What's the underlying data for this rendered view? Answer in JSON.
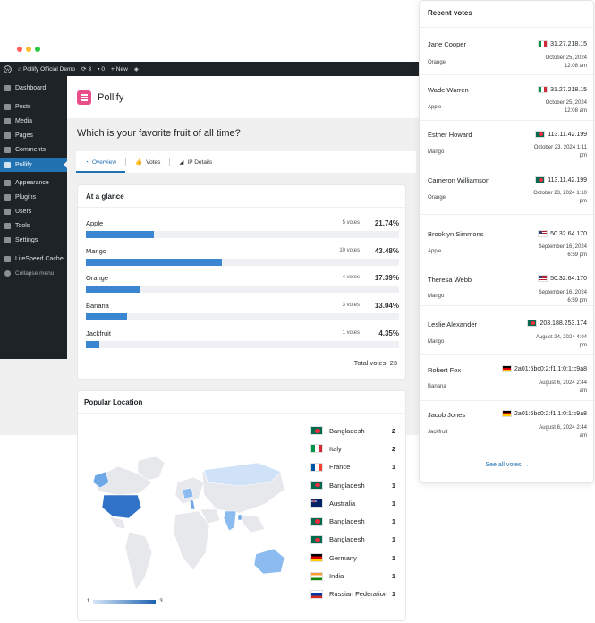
{
  "window": {
    "dot_colors": [
      "#ff5f57",
      "#febc2e",
      "#28c840"
    ]
  },
  "admin_bar": {
    "site_name": "Pollify Official Demo",
    "updates": "3",
    "comments": "0",
    "new_label": "New"
  },
  "wp_menu": {
    "items": [
      {
        "label": "Dashboard",
        "icon": "dashboard-icon"
      },
      {
        "label": "Posts",
        "icon": "pin-icon"
      },
      {
        "label": "Media",
        "icon": "media-icon"
      },
      {
        "label": "Pages",
        "icon": "pages-icon"
      },
      {
        "label": "Comments",
        "icon": "comment-icon"
      },
      {
        "label": "Pollify",
        "icon": "pollify-icon",
        "active": true
      },
      {
        "label": "Appearance",
        "icon": "brush-icon"
      },
      {
        "label": "Plugins",
        "icon": "plugin-icon"
      },
      {
        "label": "Users",
        "icon": "users-icon"
      },
      {
        "label": "Tools",
        "icon": "wrench-icon"
      },
      {
        "label": "Settings",
        "icon": "settings-icon"
      },
      {
        "label": "LiteSpeed Cache",
        "icon": "litespeed-icon"
      },
      {
        "label": "Collapse menu",
        "icon": "collapse-icon"
      }
    ]
  },
  "plugin": {
    "name": "Pollify",
    "brand_color": "#e84e8a"
  },
  "poll": {
    "question": "Which is your favorite fruit of all time?"
  },
  "tabs": [
    {
      "label": "Overview"
    },
    {
      "label": "Votes"
    },
    {
      "label": "IP Details"
    }
  ],
  "glance": {
    "title": "At a glance",
    "rows": [
      {
        "label": "Apple",
        "votes": "5 votes",
        "pct": "21.74%",
        "fraction": 0.2174
      },
      {
        "label": "Mango",
        "votes": "10 votes",
        "pct": "43.48%",
        "fraction": 0.4348
      },
      {
        "label": "Orange",
        "votes": "4 votes",
        "pct": "17.39%",
        "fraction": 0.1739
      },
      {
        "label": "Banana",
        "votes": "3 votes",
        "pct": "13.04%",
        "fraction": 0.1304
      },
      {
        "label": "Jackfruit",
        "votes": "1 votes",
        "pct": "4.35%",
        "fraction": 0.0435
      }
    ],
    "total": "Total votes: 23"
  },
  "popular": {
    "title": "Popular Location",
    "legend_min": "1",
    "legend_max": "3",
    "countries": [
      {
        "name": "Bangladesh",
        "count": "2",
        "flag": "bd"
      },
      {
        "name": "Italy",
        "count": "2",
        "flag": "it"
      },
      {
        "name": "France",
        "count": "1",
        "flag": "fr"
      },
      {
        "name": "Bangladesh",
        "count": "1",
        "flag": "bd"
      },
      {
        "name": "Australia",
        "count": "1",
        "flag": "au"
      },
      {
        "name": "Bangladesh",
        "count": "1",
        "flag": "bd"
      },
      {
        "name": "Bangladesh",
        "count": "1",
        "flag": "bd"
      },
      {
        "name": "Germany",
        "count": "1",
        "flag": "de"
      },
      {
        "name": "India",
        "count": "1",
        "flag": "in"
      },
      {
        "name": "Russian Federation",
        "count": "1",
        "flag": "ru"
      }
    ]
  },
  "recent": {
    "title": "Recent votes",
    "see_all": "See all votes →",
    "votes": [
      {
        "name": "Jane Cooper",
        "fruit": "Orange",
        "ip": "31.27.218.15",
        "flag": "it",
        "date1": "October 25, 2024",
        "date2": "12:08 am"
      },
      {
        "name": "Wade Warren",
        "fruit": "Apple",
        "ip": "31.27.218.15",
        "flag": "it",
        "date1": "October 25, 2024",
        "date2": "12:08 am"
      },
      {
        "name": "Esther Howard",
        "fruit": "Mango",
        "ip": "113.11.42.199",
        "flag": "bd",
        "date1": "October 23, 2024 1:11",
        "date2": "pm"
      },
      {
        "name": "Cameron Williamson",
        "fruit": "Orange",
        "ip": "113.11.42.199",
        "flag": "bd",
        "date1": "October 23, 2024 1:10",
        "date2": "pm"
      },
      {
        "name": "Brooklyn Simmons",
        "fruit": "Apple",
        "ip": "50.32.64.170",
        "flag": "us",
        "date1": "September 16, 2024",
        "date2": "6:59 pm"
      },
      {
        "name": "Theresa Webb",
        "fruit": "Mango",
        "ip": "50.32.64.170",
        "flag": "us",
        "date1": "September 16, 2024",
        "date2": "6:59 pm"
      },
      {
        "name": "Leslie Alexander",
        "fruit": "Mango",
        "ip": "203.188.253.174",
        "flag": "bd",
        "date1": "August 24, 2024 4:04",
        "date2": "pm"
      },
      {
        "name": "Robert Fox",
        "fruit": "Banana",
        "ip": "2a01:6bc0:2:f1:1:0:1:c9a8",
        "flag": "de",
        "date1": "August 6, 2024 2:44",
        "date2": "am"
      },
      {
        "name": "Jacob Jones",
        "fruit": "Jackfruit",
        "ip": "2a01:6bc0:2:f1:1:0:1:c9a8",
        "flag": "de",
        "date1": "August 6, 2024 2:44",
        "date2": "am"
      }
    ]
  }
}
